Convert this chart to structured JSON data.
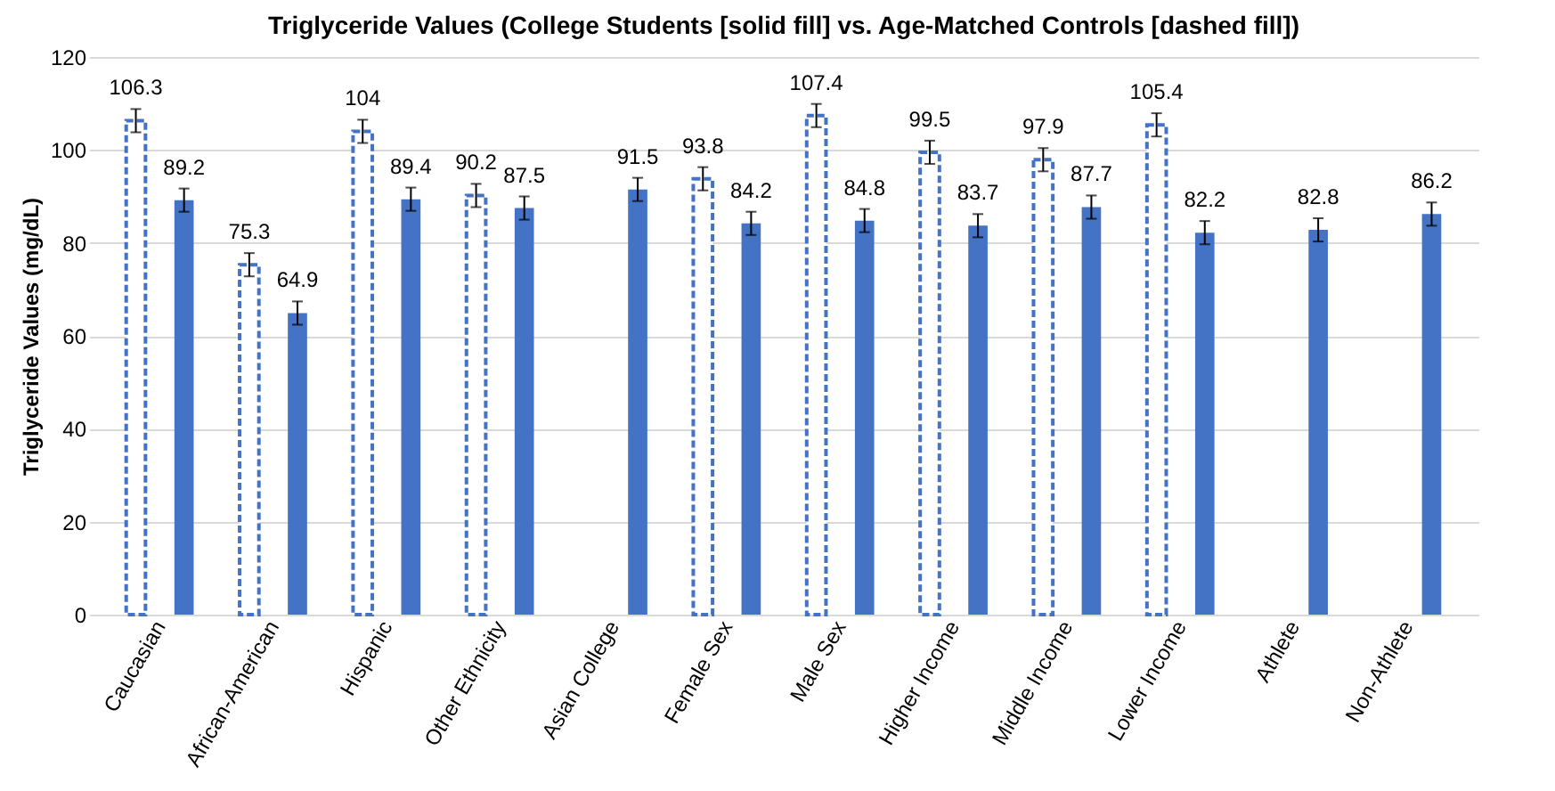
{
  "chart_data": {
    "type": "bar",
    "title": "Triglyceride Values (College Students [solid fill] vs. Age-Matched Controls [dashed fill])",
    "ylabel": "Triglyceride Values (mg/dL)",
    "categories": [
      "Caucasian",
      "African-American",
      "Hispanic",
      "Other Ethnicity",
      "Asian College",
      "Female Sex",
      "Male Sex",
      "Higher Income",
      "Middle Income",
      "Lower Income",
      "Athlete",
      "Non-Athlete"
    ],
    "series": [
      {
        "color": "#4472c4",
        "line_style": "dashed",
        "values": [
          106.3,
          75.3,
          104,
          90.2,
          null,
          93.8,
          107.4,
          99.5,
          97.9,
          105.4,
          null,
          null
        ],
        "errors": [
          2.5,
          2.5,
          2.5,
          2.5,
          null,
          2.5,
          2.5,
          2.5,
          2.5,
          2.5,
          null,
          null
        ]
      },
      {
        "color": "#4472c4",
        "line_style": "solid",
        "values": [
          89.2,
          64.9,
          89.4,
          87.5,
          91.5,
          84.2,
          84.8,
          83.7,
          87.7,
          82.2,
          82.8,
          86.2
        ],
        "errors": [
          2.5,
          2.5,
          2.5,
          2.5,
          2.5,
          2.5,
          2.5,
          2.5,
          2.5,
          2.5,
          2.5,
          2.5
        ]
      }
    ],
    "ylim": [
      0,
      120
    ],
    "yticks": [
      0,
      20,
      40,
      60,
      80,
      100,
      120
    ],
    "grid": "y",
    "data_labels": true
  }
}
